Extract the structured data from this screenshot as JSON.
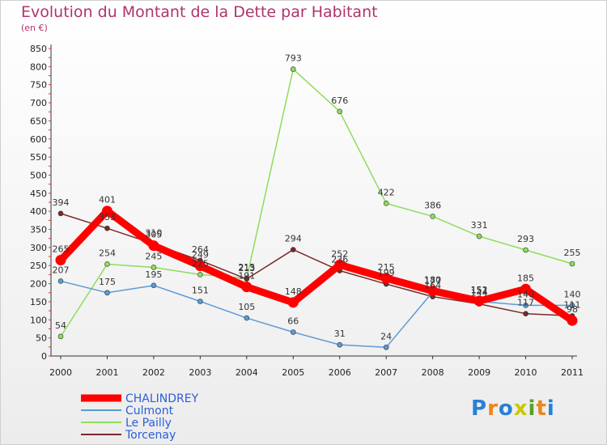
{
  "title": "Evolution du Montant de la Dette par Habitant",
  "subtitle": "(en €)",
  "logo": "Proxiti",
  "chart_data": {
    "type": "line",
    "x": [
      "2000",
      "2001",
      "2002",
      "2003",
      "2004",
      "2005",
      "2006",
      "2007",
      "2008",
      "2009",
      "2010",
      "2011"
    ],
    "ylim": [
      0,
      850
    ],
    "yticks": [
      0,
      50,
      100,
      150,
      200,
      250,
      300,
      350,
      400,
      450,
      500,
      550,
      600,
      650,
      700,
      750,
      800,
      850
    ],
    "grid": false,
    "legend": "bottom-left",
    "series": [
      {
        "name": "CHALINDREY",
        "color": "#ff0000",
        "values": [
          265,
          401,
          305,
          249,
          191,
          148,
          252,
          215,
          180,
          152,
          185,
          98
        ],
        "labels": [
          "265",
          "401",
          "305",
          "249",
          "191",
          "148",
          "252",
          "215",
          "180",
          "152",
          "185",
          "98"
        ]
      },
      {
        "name": "Culmont",
        "color": "#5b9bd5",
        "values": [
          207,
          175,
          195,
          151,
          105,
          66,
          31,
          24,
          177,
          151,
          140,
          140
        ],
        "labels": [
          "207",
          "175",
          "195",
          "151",
          "105",
          "66",
          "31",
          "24",
          "177",
          "151",
          "140",
          "140"
        ]
      },
      {
        "name": "Le Pailly",
        "color": "#8fdc5a",
        "values": [
          54,
          254,
          245,
          225,
          215,
          793,
          676,
          422,
          386,
          331,
          293,
          255
        ],
        "labels": [
          "54",
          "254",
          "245",
          "225",
          "215",
          "793",
          "676",
          "422",
          "386",
          "331",
          "293",
          "255"
        ]
      },
      {
        "name": "Torcenay",
        "color": "#7a2a2a",
        "values": [
          394,
          353,
          310,
          264,
          213,
          294,
          236,
          199,
          164,
          144,
          117,
          111
        ],
        "labels": [
          "394",
          "353",
          "310",
          "264",
          "213",
          "294",
          "236",
          "199",
          "164",
          "144",
          "117",
          "111"
        ]
      }
    ]
  }
}
